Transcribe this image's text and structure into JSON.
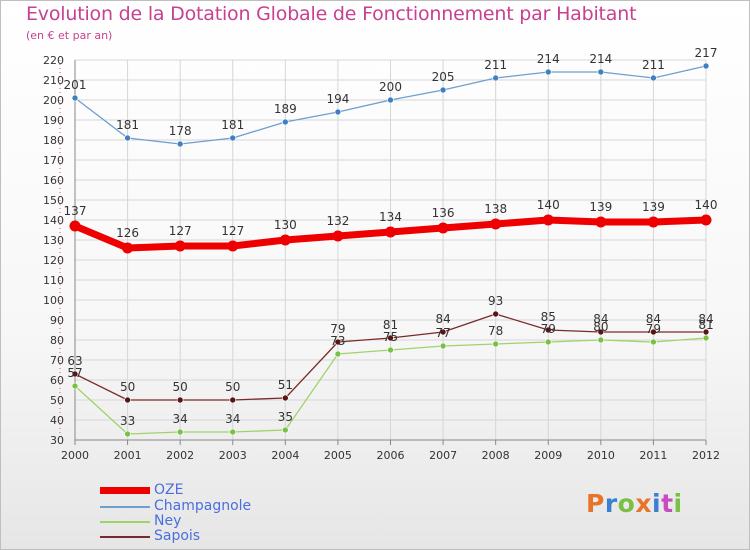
{
  "header": {
    "title": "Evolution de la Dotation Globale de Fonctionnement par Habitant",
    "subtitle": "(en € et par an)"
  },
  "logo": {
    "text": "Proxiti",
    "colors": [
      "#e8742a",
      "#3a7fd0",
      "#7ac143",
      "#e8742a",
      "#3a7fd0",
      "#c84cc0",
      "#7ac143"
    ]
  },
  "chart_data": {
    "type": "line",
    "x": [
      2000,
      2001,
      2002,
      2003,
      2004,
      2005,
      2006,
      2007,
      2008,
      2009,
      2010,
      2011,
      2012
    ],
    "ylim": [
      30,
      220
    ],
    "yticks": [
      30,
      40,
      50,
      60,
      70,
      80,
      90,
      100,
      110,
      120,
      130,
      140,
      150,
      160,
      170,
      180,
      190,
      200,
      210,
      220
    ],
    "grid": true,
    "legend_position": "bottom-left",
    "series": [
      {
        "name": "OZE",
        "color": "#ee0000",
        "values": [
          137,
          126,
          127,
          127,
          130,
          132,
          134,
          136,
          138,
          140,
          139,
          139,
          140
        ]
      },
      {
        "name": "Champagnole",
        "color": "#6f9fce",
        "values": [
          201,
          181,
          178,
          181,
          189,
          194,
          200,
          205,
          211,
          214,
          214,
          211,
          217
        ]
      },
      {
        "name": "Ney",
        "color": "#9fd36a",
        "values": [
          57,
          33,
          34,
          34,
          35,
          73,
          75,
          77,
          78,
          79,
          80,
          79,
          81
        ]
      },
      {
        "name": "Sapois",
        "color": "#7a2a2a",
        "values": [
          63,
          50,
          50,
          50,
          51,
          79,
          81,
          84,
          93,
          85,
          84,
          84,
          84
        ]
      }
    ]
  }
}
